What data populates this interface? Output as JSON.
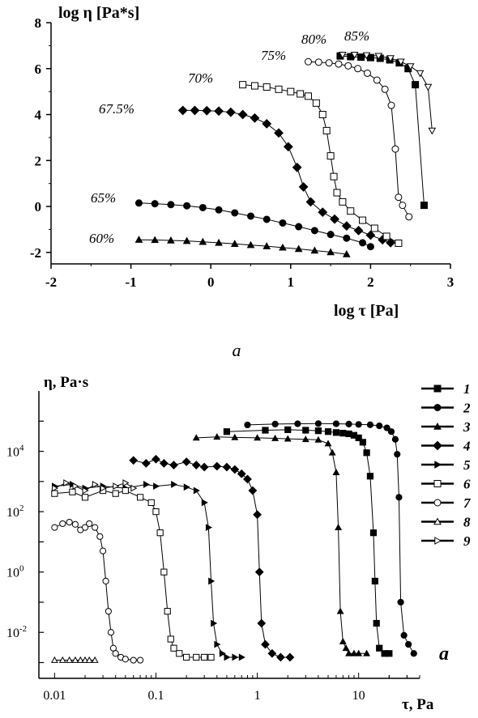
{
  "chart_data": [
    {
      "type": "scatter",
      "panel_label": "a",
      "xlabel": "log τ [Pa]",
      "ylabel": "log η [Pa*s]",
      "xlim": [
        -2,
        3
      ],
      "ylim": [
        -2.5,
        8
      ],
      "xticks": [
        "-2",
        "-1",
        "0",
        "1",
        "2",
        "3"
      ],
      "yticks": [
        "-2",
        "0",
        "2",
        "4",
        "6",
        "8"
      ],
      "grid": false,
      "legend": "none",
      "series": [
        {
          "name": "60%",
          "marker": "triangle-filled",
          "x": [
            -0.9,
            -0.7,
            -0.5,
            -0.3,
            -0.1,
            0.1,
            0.3,
            0.5,
            0.7,
            0.9,
            1.1,
            1.3,
            1.5,
            1.7
          ],
          "y": [
            -1.45,
            -1.46,
            -1.48,
            -1.5,
            -1.54,
            -1.58,
            -1.63,
            -1.68,
            -1.73,
            -1.79,
            -1.85,
            -1.92,
            -1.99,
            -2.08
          ]
        },
        {
          "name": "65%",
          "marker": "circle-filled",
          "x": [
            -0.9,
            -0.7,
            -0.5,
            -0.3,
            -0.1,
            0.1,
            0.3,
            0.5,
            0.7,
            0.9,
            1.1,
            1.3,
            1.5,
            1.7,
            1.9,
            2.0
          ],
          "y": [
            0.15,
            0.12,
            0.08,
            0.03,
            -0.05,
            -0.15,
            -0.28,
            -0.42,
            -0.56,
            -0.72,
            -0.88,
            -1.05,
            -1.22,
            -1.38,
            -1.58,
            -1.75
          ]
        },
        {
          "name": "67.5%",
          "marker": "diamond-filled",
          "x": [
            -0.35,
            -0.2,
            -0.05,
            0.1,
            0.25,
            0.4,
            0.55,
            0.7,
            0.85,
            0.97,
            1.08,
            1.16,
            1.25,
            1.4,
            1.55,
            1.7,
            1.85,
            2.0,
            2.15,
            2.25
          ],
          "y": [
            4.18,
            4.18,
            4.17,
            4.15,
            4.1,
            4.0,
            3.85,
            3.6,
            3.2,
            2.6,
            1.7,
            0.85,
            0.2,
            -0.25,
            -0.55,
            -0.85,
            -1.05,
            -1.25,
            -1.45,
            -1.58
          ]
        },
        {
          "name": "70%",
          "marker": "square-open",
          "x": [
            0.4,
            0.55,
            0.7,
            0.85,
            1.0,
            1.12,
            1.22,
            1.32,
            1.4,
            1.45,
            1.5,
            1.54,
            1.58,
            1.65,
            1.75,
            1.9,
            2.05,
            2.2,
            2.35
          ],
          "y": [
            5.3,
            5.25,
            5.2,
            5.1,
            5.0,
            4.9,
            4.8,
            4.5,
            4.0,
            3.3,
            2.2,
            1.3,
            0.6,
            0.2,
            -0.2,
            -0.6,
            -0.95,
            -1.3,
            -1.6
          ]
        },
        {
          "name": "75%",
          "marker": "circle-open",
          "x": [
            1.22,
            1.35,
            1.48,
            1.6,
            1.72,
            1.84,
            1.96,
            2.08,
            2.18,
            2.26,
            2.31,
            2.35,
            2.4,
            2.48
          ],
          "y": [
            6.3,
            6.28,
            6.25,
            6.2,
            6.12,
            6.0,
            5.8,
            5.5,
            5.1,
            4.4,
            2.5,
            0.4,
            0.05,
            -0.45
          ]
        },
        {
          "name": "80%",
          "marker": "square-filled",
          "x": [
            1.62,
            1.75,
            1.88,
            2.0,
            2.12,
            2.24,
            2.36,
            2.47,
            2.56,
            2.67
          ],
          "y": [
            6.55,
            6.52,
            6.5,
            6.48,
            6.45,
            6.38,
            6.25,
            6.0,
            5.3,
            0.05
          ]
        },
        {
          "name": "85%",
          "marker": "triangle-down-open",
          "x": [
            1.65,
            1.8,
            1.95,
            2.1,
            2.25,
            2.38,
            2.5,
            2.62,
            2.72,
            2.77
          ],
          "y": [
            6.6,
            6.6,
            6.58,
            6.55,
            6.45,
            6.3,
            6.1,
            5.8,
            5.2,
            3.3
          ]
        }
      ]
    },
    {
      "type": "scatter",
      "panel_label": "a",
      "xlabel": "τ, Pa",
      "ylabel": "η, Pa·s",
      "xscale": "log",
      "yscale": "log",
      "xlim": [
        0.007,
        40
      ],
      "ylim": [
        0.0003,
        1000000
      ],
      "xticks": [
        "0.01",
        "0.1",
        "1",
        "10"
      ],
      "yticks": [
        {
          "base": "10",
          "exp": "4"
        },
        {
          "base": "10",
          "exp": "2"
        },
        {
          "base": "10",
          "exp": "0"
        },
        {
          "base": "10",
          "exp": "-2"
        }
      ],
      "grid": false,
      "legend": "right",
      "series": [
        {
          "name": "1",
          "marker": "square-filled",
          "x": [
            0.5,
            1.2,
            2,
            3,
            4,
            5,
            6,
            7,
            8,
            9,
            10,
            11,
            12,
            13,
            14,
            14.5,
            15,
            16,
            18,
            20
          ],
          "y": [
            45000,
            50000,
            52000,
            50000,
            48000,
            45000,
            42000,
            40000,
            38000,
            34000,
            28000,
            20000,
            9000,
            1500,
            20,
            0.5,
            0.02,
            0.003,
            0.002,
            0.002
          ]
        },
        {
          "name": "2",
          "marker": "circle-filled",
          "x": [
            0.8,
            1.5,
            2.5,
            4,
            6,
            8,
            10,
            13,
            16,
            19,
            21,
            23,
            24,
            25,
            26,
            28,
            31,
            35
          ],
          "y": [
            75000,
            80000,
            82000,
            83000,
            82000,
            80000,
            78000,
            76000,
            70000,
            60000,
            45000,
            25000,
            8000,
            300,
            0.1,
            0.008,
            0.004,
            0.002
          ]
        },
        {
          "name": "3",
          "marker": "triangle-filled",
          "x": [
            0.25,
            0.4,
            0.6,
            1,
            1.5,
            2,
            3,
            4,
            5,
            5.5,
            6,
            6.3,
            6.6,
            7,
            7.5,
            8,
            9,
            10,
            12
          ],
          "y": [
            28000,
            30000,
            29000,
            28000,
            27000,
            26000,
            25000,
            24000,
            18000,
            9000,
            2000,
            30,
            0.05,
            0.005,
            0.003,
            0.002,
            0.002,
            0.002,
            0.002
          ]
        },
        {
          "name": "4",
          "marker": "diamond-filled",
          "x": [
            0.06,
            0.08,
            0.1,
            0.12,
            0.15,
            0.2,
            0.25,
            0.3,
            0.4,
            0.5,
            0.6,
            0.7,
            0.8,
            0.9,
            1,
            1.05,
            1.1,
            1.2,
            1.4,
            1.7,
            2.1
          ],
          "y": [
            5000,
            4000,
            5500,
            4000,
            3500,
            4500,
            3500,
            3000,
            3200,
            3000,
            2500,
            1800,
            1200,
            500,
            80,
            1,
            0.02,
            0.004,
            0.002,
            0.0015,
            0.0015
          ]
        },
        {
          "name": "5",
          "marker": "triangle-right-filled",
          "x": [
            0.01,
            0.015,
            0.02,
            0.03,
            0.05,
            0.08,
            0.1,
            0.15,
            0.2,
            0.25,
            0.3,
            0.33,
            0.35,
            0.37,
            0.4,
            0.45,
            0.5,
            0.6,
            0.7
          ],
          "y": [
            700,
            800,
            600,
            700,
            600,
            800,
            700,
            800,
            650,
            500,
            200,
            30,
            0.5,
            0.02,
            0.004,
            0.002,
            0.0015,
            0.0015,
            0.0015
          ]
        },
        {
          "name": "6",
          "marker": "square-open",
          "x": [
            0.01,
            0.015,
            0.02,
            0.03,
            0.04,
            0.05,
            0.07,
            0.09,
            0.1,
            0.11,
            0.12,
            0.13,
            0.14,
            0.15,
            0.17,
            0.2,
            0.25,
            0.3,
            0.35
          ],
          "y": [
            400,
            450,
            300,
            500,
            400,
            500,
            300,
            200,
            100,
            20,
            1,
            0.05,
            0.006,
            0.003,
            0.002,
            0.0015,
            0.0015,
            0.0015,
            0.0015
          ]
        },
        {
          "name": "7",
          "marker": "circle-open",
          "x": [
            0.01,
            0.012,
            0.014,
            0.016,
            0.018,
            0.02,
            0.022,
            0.025,
            0.028,
            0.03,
            0.032,
            0.034,
            0.036,
            0.038,
            0.04,
            0.045,
            0.05,
            0.06,
            0.07
          ],
          "y": [
            30,
            40,
            45,
            38,
            25,
            30,
            40,
            30,
            15,
            5,
            0.5,
            0.05,
            0.01,
            0.003,
            0.002,
            0.0015,
            0.0013,
            0.0012,
            0.0012
          ]
        },
        {
          "name": "8",
          "marker": "triangle-open",
          "x": [
            0.01,
            0.012,
            0.014,
            0.016,
            0.018,
            0.02,
            0.022,
            0.025
          ],
          "y": [
            0.0012,
            0.0012,
            0.0012,
            0.0012,
            0.0012,
            0.0012,
            0.0012,
            0.0012
          ]
        },
        {
          "name": "9",
          "marker": "triangle-right-open",
          "x": [
            0.01,
            0.013,
            0.016,
            0.02,
            0.025,
            0.03,
            0.04,
            0.05,
            0.06
          ],
          "y": [
            600,
            900,
            700,
            500,
            800,
            600,
            700,
            900,
            600
          ]
        }
      ]
    }
  ]
}
